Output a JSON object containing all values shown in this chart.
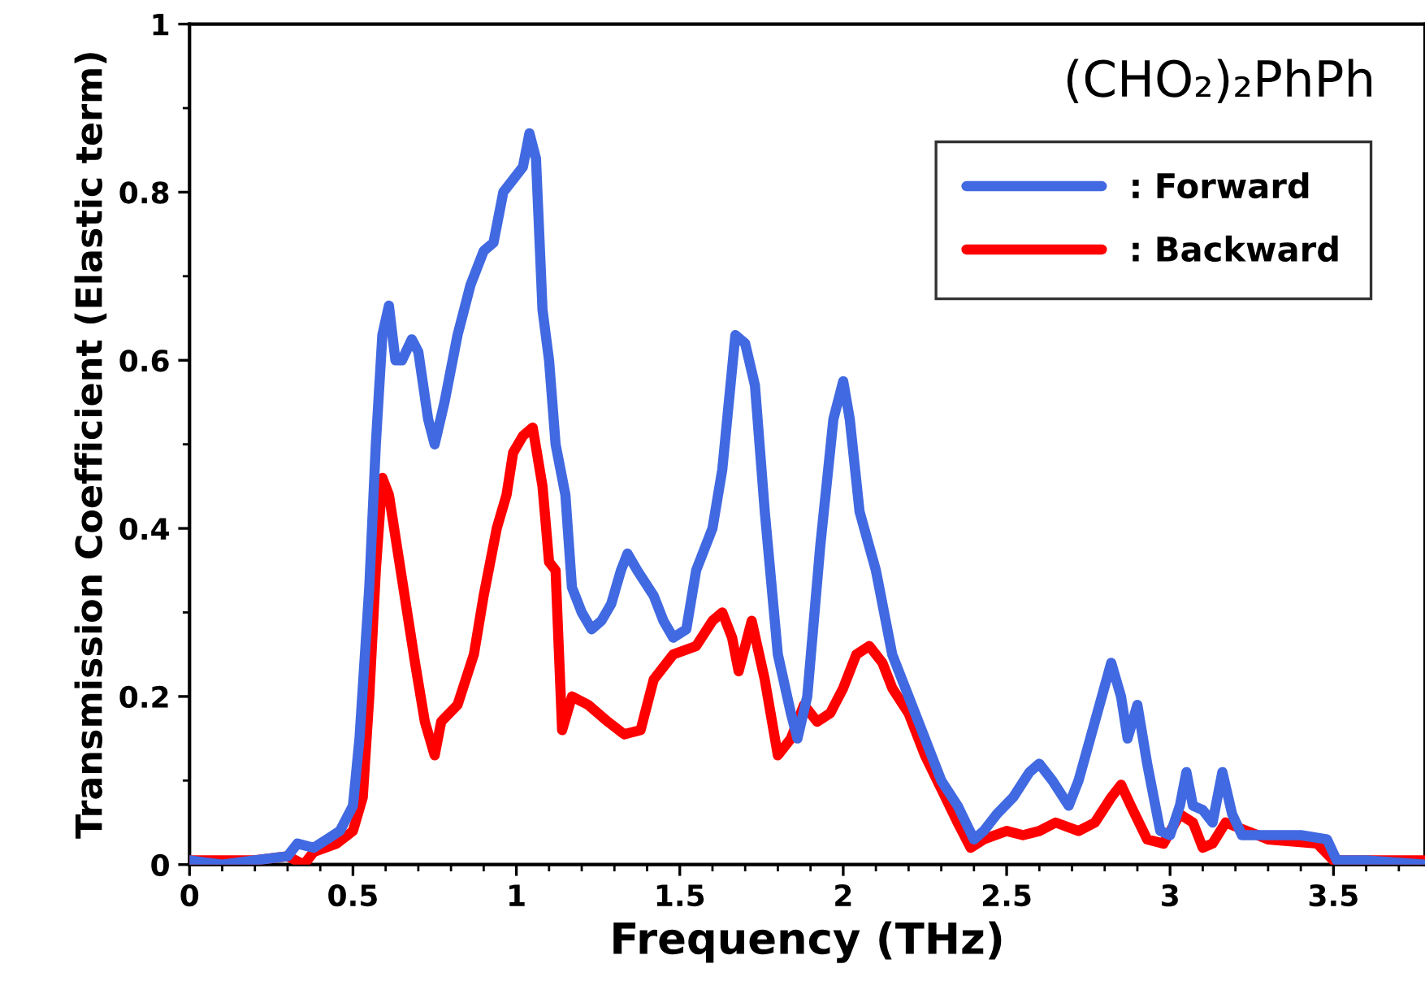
{
  "chart_data": {
    "type": "line",
    "xlabel": "Frequency (THz)",
    "ylabel": "Transmission Coefficient (Elastic term)",
    "annotations": [
      "(CHO₂)₂PhPh"
    ],
    "xlim": [
      0,
      3.78
    ],
    "ylim": [
      0,
      1
    ],
    "xticks": [
      0,
      {
        "value": 0.1,
        "label": null
      },
      {
        "value": 0.2,
        "label": null
      },
      {
        "value": 0.3,
        "label": null
      },
      {
        "value": 0.4,
        "label": null
      },
      0.5,
      {
        "value": 0.6,
        "label": null
      },
      {
        "value": 0.7,
        "label": null
      },
      {
        "value": 0.8,
        "label": null
      },
      {
        "value": 0.9,
        "label": null
      },
      1,
      {
        "value": 1.1,
        "label": null
      },
      {
        "value": 1.2,
        "label": null
      },
      {
        "value": 1.3,
        "label": null
      },
      {
        "value": 1.4,
        "label": null
      },
      1.5,
      {
        "value": 1.6,
        "label": null
      },
      {
        "value": 1.7,
        "label": null
      },
      {
        "value": 1.8,
        "label": null
      },
      {
        "value": 1.9,
        "label": null
      },
      2,
      {
        "value": 2.1,
        "label": null
      },
      {
        "value": 2.2,
        "label": null
      },
      {
        "value": 2.3,
        "label": null
      },
      {
        "value": 2.4,
        "label": null
      },
      2.5,
      {
        "value": 2.6,
        "label": null
      },
      {
        "value": 2.7,
        "label": null
      },
      {
        "value": 2.8,
        "label": null
      },
      {
        "value": 2.9,
        "label": null
      },
      3,
      {
        "value": 3.1,
        "label": null
      },
      {
        "value": 3.2,
        "label": null
      },
      {
        "value": 3.3,
        "label": null
      },
      {
        "value": 3.4,
        "label": null
      },
      3.5,
      {
        "value": 3.6,
        "label": null
      },
      {
        "value": 3.7,
        "label": null
      }
    ],
    "yticks": [
      0,
      {
        "value": 0.1,
        "label": null
      },
      0.2,
      {
        "value": 0.3,
        "label": null
      },
      0.4,
      {
        "value": 0.5,
        "label": null
      },
      0.6,
      {
        "value": 0.7,
        "label": null
      },
      0.8,
      {
        "value": 0.9,
        "label": null
      },
      1
    ],
    "grid": false,
    "legend": "top right",
    "marker": "none",
    "line_style": "solid",
    "series": [
      {
        "name": ": Forward",
        "color": "#4169e1",
        "x": [
          0,
          0.1,
          0.2,
          0.3,
          0.33,
          0.38,
          0.42,
          0.46,
          0.5,
          0.52,
          0.55,
          0.57,
          0.59,
          0.61,
          0.63,
          0.65,
          0.68,
          0.7,
          0.73,
          0.75,
          0.78,
          0.82,
          0.86,
          0.9,
          0.93,
          0.96,
          0.99,
          1.02,
          1.04,
          1.06,
          1.08,
          1.1,
          1.12,
          1.15,
          1.17,
          1.2,
          1.23,
          1.26,
          1.29,
          1.32,
          1.34,
          1.37,
          1.42,
          1.45,
          1.48,
          1.52,
          1.55,
          1.6,
          1.63,
          1.65,
          1.67,
          1.7,
          1.73,
          1.76,
          1.8,
          1.84,
          1.86,
          1.89,
          1.93,
          1.97,
          2.0,
          2.02,
          2.05,
          2.1,
          2.15,
          2.2,
          2.25,
          2.3,
          2.35,
          2.4,
          2.43,
          2.47,
          2.52,
          2.57,
          2.6,
          2.64,
          2.69,
          2.72,
          2.77,
          2.82,
          2.85,
          2.87,
          2.9,
          2.93,
          2.97,
          3.0,
          3.03,
          3.05,
          3.07,
          3.1,
          3.13,
          3.16,
          3.19,
          3.22,
          3.3,
          3.4,
          3.48,
          3.51,
          3.6,
          3.78
        ],
        "values": [
          0.005,
          0.0,
          0.005,
          0.01,
          0.025,
          0.02,
          0.03,
          0.04,
          0.07,
          0.15,
          0.33,
          0.5,
          0.63,
          0.665,
          0.6,
          0.6,
          0.625,
          0.61,
          0.53,
          0.5,
          0.55,
          0.63,
          0.69,
          0.73,
          0.74,
          0.8,
          0.815,
          0.83,
          0.87,
          0.84,
          0.66,
          0.6,
          0.5,
          0.44,
          0.33,
          0.3,
          0.28,
          0.29,
          0.31,
          0.35,
          0.37,
          0.35,
          0.32,
          0.29,
          0.27,
          0.28,
          0.35,
          0.4,
          0.47,
          0.55,
          0.63,
          0.62,
          0.57,
          0.42,
          0.25,
          0.18,
          0.15,
          0.2,
          0.38,
          0.53,
          0.575,
          0.53,
          0.42,
          0.35,
          0.25,
          0.2,
          0.15,
          0.1,
          0.07,
          0.03,
          0.04,
          0.06,
          0.08,
          0.11,
          0.12,
          0.1,
          0.07,
          0.1,
          0.17,
          0.24,
          0.2,
          0.15,
          0.19,
          0.12,
          0.04,
          0.035,
          0.07,
          0.11,
          0.07,
          0.065,
          0.05,
          0.11,
          0.06,
          0.035,
          0.035,
          0.035,
          0.03,
          0.005,
          0.005,
          0.0
        ]
      },
      {
        "name": ": Backward",
        "color": "#ff0000",
        "x": [
          0,
          0.2,
          0.3,
          0.35,
          0.38,
          0.45,
          0.5,
          0.53,
          0.55,
          0.57,
          0.59,
          0.61,
          0.65,
          0.69,
          0.72,
          0.75,
          0.77,
          0.82,
          0.87,
          0.9,
          0.94,
          0.97,
          0.99,
          1.02,
          1.05,
          1.08,
          1.1,
          1.12,
          1.14,
          1.17,
          1.22,
          1.28,
          1.33,
          1.38,
          1.42,
          1.48,
          1.55,
          1.6,
          1.63,
          1.66,
          1.68,
          1.72,
          1.76,
          1.8,
          1.84,
          1.88,
          1.92,
          1.96,
          2.0,
          2.04,
          2.08,
          2.12,
          2.15,
          2.2,
          2.25,
          2.3,
          2.35,
          2.39,
          2.43,
          2.5,
          2.55,
          2.6,
          2.65,
          2.72,
          2.77,
          2.82,
          2.85,
          2.88,
          2.93,
          2.98,
          3.03,
          3.07,
          3.1,
          3.13,
          3.17,
          3.3,
          3.45,
          3.5,
          3.78
        ],
        "values": [
          0.005,
          0.005,
          0.01,
          0.0,
          0.015,
          0.025,
          0.04,
          0.08,
          0.2,
          0.35,
          0.46,
          0.44,
          0.34,
          0.24,
          0.17,
          0.13,
          0.17,
          0.19,
          0.25,
          0.32,
          0.4,
          0.44,
          0.49,
          0.51,
          0.52,
          0.45,
          0.36,
          0.35,
          0.16,
          0.2,
          0.19,
          0.17,
          0.155,
          0.16,
          0.22,
          0.25,
          0.26,
          0.29,
          0.3,
          0.27,
          0.23,
          0.29,
          0.22,
          0.13,
          0.15,
          0.19,
          0.17,
          0.18,
          0.21,
          0.25,
          0.26,
          0.24,
          0.21,
          0.18,
          0.13,
          0.09,
          0.05,
          0.02,
          0.03,
          0.04,
          0.035,
          0.04,
          0.05,
          0.04,
          0.05,
          0.08,
          0.095,
          0.07,
          0.03,
          0.025,
          0.06,
          0.05,
          0.02,
          0.025,
          0.05,
          0.03,
          0.025,
          0.005,
          0.005
        ]
      }
    ]
  }
}
